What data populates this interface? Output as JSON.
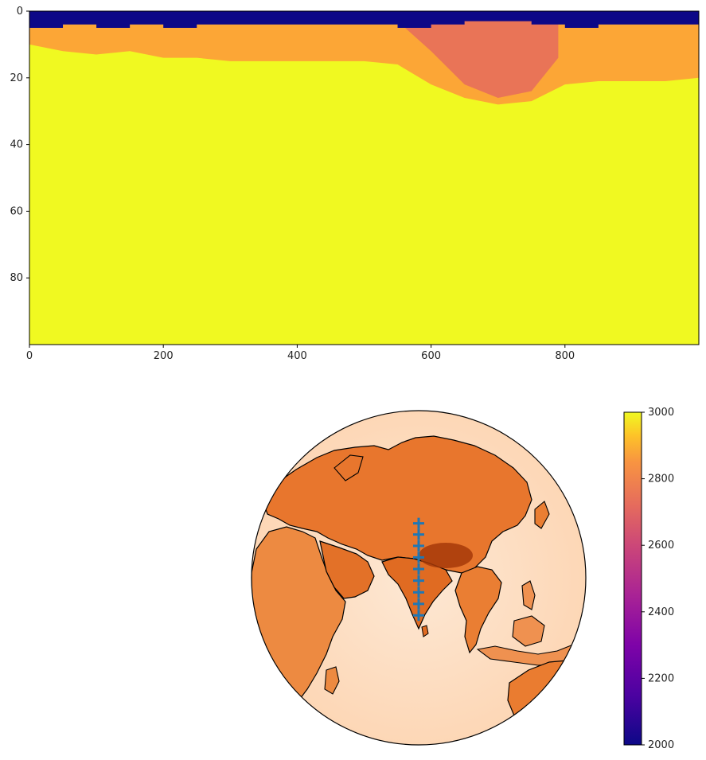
{
  "chart_data": [
    {
      "type": "heatmap",
      "title": "",
      "xlabel": "",
      "ylabel": "",
      "x_range": [
        0,
        1000
      ],
      "y_range": [
        100,
        0
      ],
      "x_ticks": [
        0,
        200,
        400,
        600,
        800
      ],
      "y_ticks": [
        0,
        20,
        40,
        60,
        80
      ],
      "colormap": "plasma",
      "value_range": [
        2000,
        3000
      ],
      "layers": [
        {
          "name": "top",
          "value": 2000,
          "color": "#0d0887"
        },
        {
          "name": "shallow",
          "value": 2800,
          "color": "#fca636"
        },
        {
          "name": "bulk",
          "value": 3000,
          "color": "#f0f921"
        },
        {
          "name": "anomaly",
          "value": 2650,
          "color": "#e56b5d"
        }
      ],
      "profile": {
        "x": [
          0,
          50,
          100,
          150,
          200,
          250,
          300,
          350,
          400,
          450,
          500,
          550,
          600,
          650,
          700,
          750,
          800,
          850,
          900,
          950,
          1000
        ],
        "top_layer_base": [
          5,
          4,
          5,
          4,
          5,
          4,
          4,
          4,
          4,
          4,
          4,
          5,
          4,
          3,
          3,
          4,
          5,
          4,
          4,
          4,
          4
        ],
        "shallow_layer_base": [
          10,
          12,
          13,
          12,
          14,
          14,
          15,
          15,
          15,
          15,
          15,
          16,
          22,
          26,
          28,
          27,
          22,
          21,
          21,
          21,
          20
        ]
      }
    },
    {
      "type": "heatmap",
      "projection": "orthographic",
      "title": "",
      "colormap": "Oranges",
      "markers": {
        "symbol": "+",
        "color": "#1f77b4",
        "count": 9,
        "longitude": 80,
        "latitudes": [
          39,
          35,
          31,
          27,
          23,
          19,
          15,
          11,
          7
        ]
      }
    }
  ],
  "colorbar": {
    "colormap": "plasma",
    "min": 2000,
    "max": 3000,
    "ticks": [
      "2000",
      "2200",
      "2400",
      "2600",
      "2800",
      "3000"
    ]
  }
}
